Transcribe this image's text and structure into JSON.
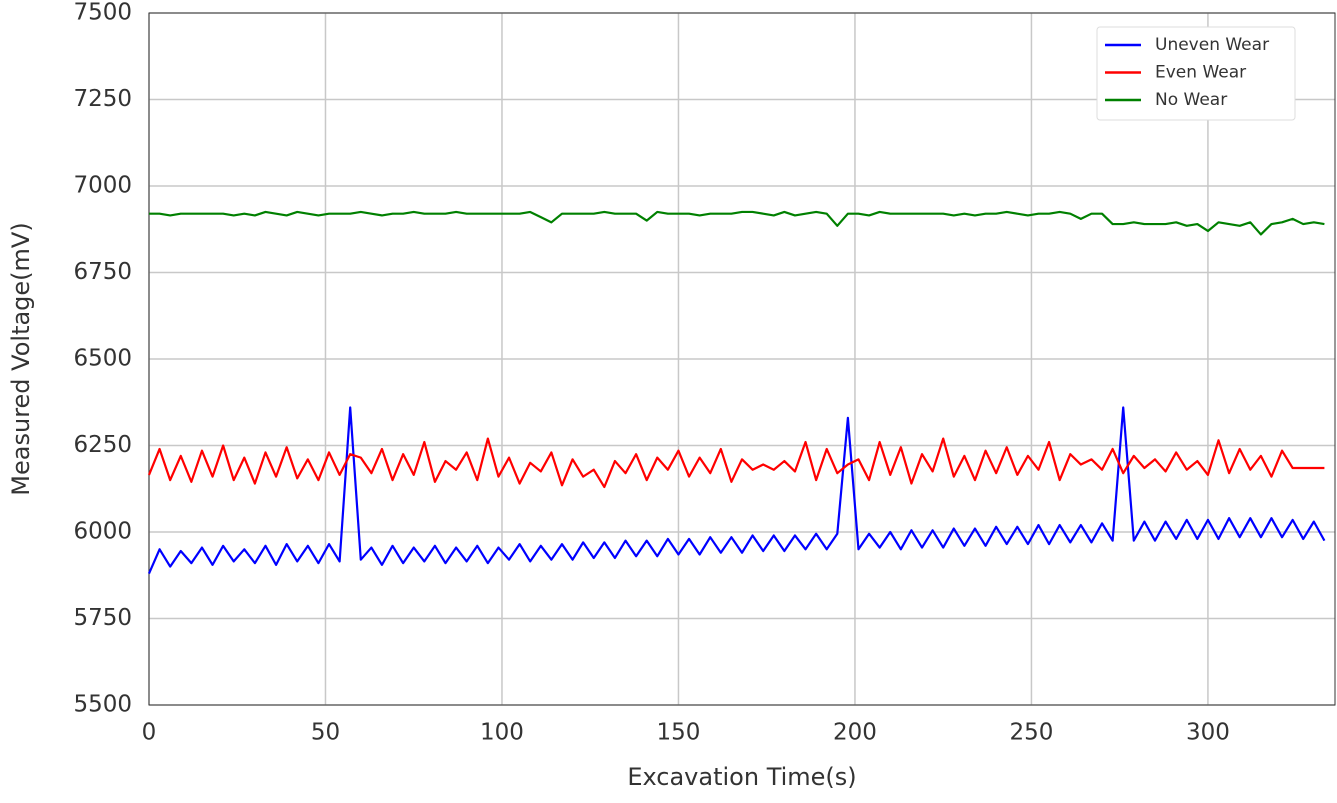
{
  "chart_data": {
    "type": "line",
    "xlabel": "Excavation Time(s)",
    "ylabel": "Measured Voltage(mV)",
    "xlim": [
      0,
      336
    ],
    "ylim": [
      5500,
      7500
    ],
    "xticks": [
      0,
      50,
      100,
      150,
      200,
      250,
      300
    ],
    "yticks": [
      5500,
      5750,
      6000,
      6250,
      6500,
      6750,
      7000,
      7250,
      7500
    ],
    "grid": true,
    "legend": "upper right",
    "x": [
      0,
      3,
      6,
      9,
      12,
      15,
      18,
      21,
      24,
      27,
      30,
      33,
      36,
      39,
      42,
      45,
      48,
      51,
      54,
      57,
      60,
      63,
      66,
      69,
      72,
      75,
      78,
      81,
      84,
      87,
      90,
      93,
      96,
      99,
      102,
      105,
      108,
      111,
      114,
      117,
      120,
      123,
      126,
      129,
      132,
      135,
      138,
      141,
      144,
      147,
      150,
      153,
      156,
      159,
      162,
      165,
      168,
      171,
      174,
      177,
      180,
      183,
      186,
      189,
      192,
      195,
      198,
      201,
      204,
      207,
      210,
      213,
      216,
      219,
      222,
      225,
      228,
      231,
      234,
      237,
      240,
      243,
      246,
      249,
      252,
      255,
      258,
      261,
      264,
      267,
      270,
      273,
      276,
      279,
      282,
      285,
      288,
      291,
      294,
      297,
      300,
      303,
      306,
      309,
      312,
      315,
      318,
      321,
      324,
      327,
      330,
      333
    ],
    "series": [
      {
        "name": "Uneven Wear",
        "color": "#0000ff",
        "values": [
          5880,
          5950,
          5900,
          5945,
          5910,
          5955,
          5905,
          5960,
          5915,
          5950,
          5910,
          5960,
          5905,
          5965,
          5915,
          5960,
          5910,
          5965,
          5915,
          6360,
          5920,
          5955,
          5905,
          5960,
          5910,
          5955,
          5915,
          5960,
          5910,
          5955,
          5915,
          5960,
          5910,
          5955,
          5920,
          5965,
          5915,
          5960,
          5920,
          5965,
          5920,
          5970,
          5925,
          5970,
          5925,
          5975,
          5930,
          5975,
          5930,
          5980,
          5935,
          5980,
          5935,
          5985,
          5940,
          5985,
          5940,
          5990,
          5945,
          5990,
          5945,
          5990,
          5950,
          5995,
          5950,
          5995,
          6330,
          5950,
          5995,
          5955,
          6000,
          5950,
          6005,
          5955,
          6005,
          5955,
          6010,
          5960,
          6010,
          5960,
          6015,
          5965,
          6015,
          5965,
          6020,
          5965,
          6020,
          5970,
          6020,
          5970,
          6025,
          5975,
          6360,
          5975,
          6030,
          5975,
          6030,
          5980,
          6035,
          5980,
          6035,
          5980,
          6040,
          5985,
          6040,
          5985,
          6040,
          5985,
          6035,
          5980,
          6030,
          5975
        ]
      },
      {
        "name": "Even Wear",
        "color": "#ff0000",
        "values": [
          6165,
          6240,
          6150,
          6220,
          6145,
          6235,
          6160,
          6250,
          6150,
          6215,
          6140,
          6230,
          6160,
          6245,
          6155,
          6210,
          6150,
          6230,
          6165,
          6225,
          6215,
          6170,
          6240,
          6150,
          6225,
          6165,
          6260,
          6145,
          6205,
          6180,
          6230,
          6150,
          6270,
          6160,
          6215,
          6140,
          6200,
          6175,
          6230,
          6135,
          6210,
          6160,
          6180,
          6130,
          6205,
          6170,
          6225,
          6150,
          6215,
          6180,
          6235,
          6160,
          6215,
          6170,
          6240,
          6145,
          6210,
          6180,
          6195,
          6180,
          6205,
          6175,
          6260,
          6150,
          6240,
          6170,
          6195,
          6210,
          6150,
          6260,
          6165,
          6245,
          6140,
          6225,
          6175,
          6270,
          6160,
          6220,
          6150,
          6235,
          6170,
          6245,
          6165,
          6220,
          6180,
          6260,
          6150,
          6225,
          6195,
          6210,
          6180,
          6240,
          6170,
          6220,
          6185,
          6210,
          6175,
          6230,
          6180,
          6205,
          6165,
          6265,
          6170,
          6240,
          6180,
          6220,
          6160,
          6235,
          6185,
          6185,
          6185,
          6185
        ]
      },
      {
        "name": "No Wear",
        "color": "#008000",
        "values": [
          6920,
          6920,
          6915,
          6920,
          6920,
          6920,
          6920,
          6920,
          6915,
          6920,
          6915,
          6925,
          6920,
          6915,
          6925,
          6920,
          6915,
          6920,
          6920,
          6920,
          6925,
          6920,
          6915,
          6920,
          6920,
          6925,
          6920,
          6920,
          6920,
          6925,
          6920,
          6920,
          6920,
          6920,
          6920,
          6920,
          6925,
          6910,
          6895,
          6920,
          6920,
          6920,
          6920,
          6925,
          6920,
          6920,
          6920,
          6900,
          6925,
          6920,
          6920,
          6920,
          6915,
          6920,
          6920,
          6920,
          6925,
          6925,
          6920,
          6915,
          6925,
          6915,
          6920,
          6925,
          6920,
          6885,
          6920,
          6920,
          6915,
          6925,
          6920,
          6920,
          6920,
          6920,
          6920,
          6920,
          6915,
          6920,
          6915,
          6920,
          6920,
          6925,
          6920,
          6915,
          6920,
          6920,
          6925,
          6920,
          6905,
          6920,
          6920,
          6890,
          6890,
          6895,
          6890,
          6890,
          6890,
          6895,
          6885,
          6890,
          6870,
          6895,
          6890,
          6885,
          6895,
          6860,
          6890,
          6895,
          6905,
          6890,
          6895,
          6890
        ]
      }
    ]
  }
}
